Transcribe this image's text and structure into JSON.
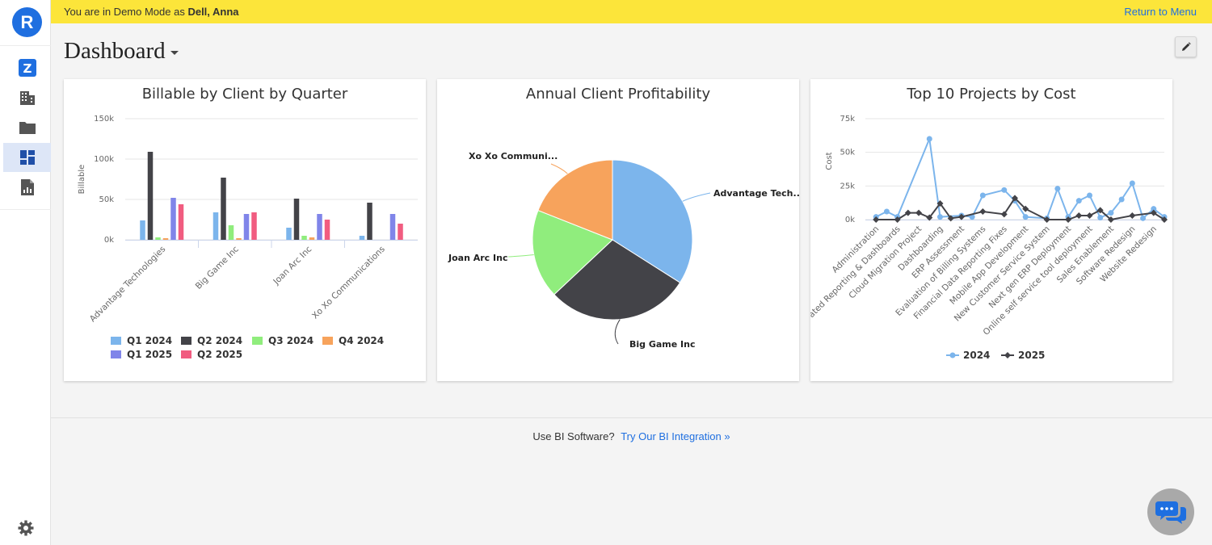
{
  "app": {
    "logo_letter": "R"
  },
  "banner": {
    "prefix": "You are in Demo Mode as ",
    "user": "Dell, Anna",
    "return_label": "Return to Menu"
  },
  "sidebar": {
    "items": [
      {
        "icon": "z-app-icon",
        "active": false
      },
      {
        "icon": "building-icon",
        "active": false
      },
      {
        "icon": "folder-icon",
        "active": false
      },
      {
        "icon": "dashboard-icon",
        "active": true
      },
      {
        "icon": "report-icon",
        "active": false
      }
    ],
    "settings_icon": "gear-icon"
  },
  "page": {
    "title": "Dashboard",
    "edit_icon": "pencil-icon"
  },
  "cards": {
    "billable": {
      "title": "Billable by Client by Quarter"
    },
    "profitability": {
      "title": "Annual Client Profitability"
    },
    "projects": {
      "title": "Top 10 Projects by Cost"
    }
  },
  "chart_data": [
    {
      "type": "bar",
      "title": "Billable by Client by Quarter",
      "ylabel": "Billable",
      "ylim": [
        0,
        150000
      ],
      "y_ticks": [
        "0k",
        "50k",
        "100k",
        "150k"
      ],
      "categories": [
        "Advantage Technologies",
        "Big Game Inc",
        "Joan Arc Inc",
        "Xo Xo Communications"
      ],
      "series": [
        {
          "name": "Q1 2024",
          "color": "#7cb5ec",
          "values": [
            24000,
            34000,
            15000,
            5000
          ]
        },
        {
          "name": "Q2 2024",
          "color": "#434348",
          "values": [
            109000,
            77000,
            51000,
            46000
          ]
        },
        {
          "name": "Q3 2024",
          "color": "#90ed7d",
          "values": [
            3000,
            18000,
            5000,
            0
          ]
        },
        {
          "name": "Q4 2024",
          "color": "#f7a35c",
          "values": [
            2000,
            2000,
            3000,
            0
          ]
        },
        {
          "name": "Q1 2025",
          "color": "#8085e9",
          "values": [
            52000,
            32000,
            32000,
            32000
          ]
        },
        {
          "name": "Q2 2025",
          "color": "#f15c80",
          "values": [
            44000,
            34000,
            25000,
            20000
          ]
        }
      ],
      "legend": "bottom"
    },
    {
      "type": "pie",
      "title": "Annual Client Profitability",
      "labels": [
        "Advantage Tech...",
        "Big Game Inc",
        "Joan Arc Inc",
        "Xo Xo Communi..."
      ],
      "values": [
        34,
        29,
        18,
        19
      ],
      "colors": [
        "#7cb5ec",
        "#434348",
        "#90ed7d",
        "#f7a35c"
      ]
    },
    {
      "type": "line",
      "title": "Top 10 Projects by Cost",
      "ylabel": "Cost",
      "ylim": [
        0,
        75000
      ],
      "y_ticks": [
        "0k",
        "25k",
        "50k",
        "75k"
      ],
      "categories": [
        "Administration",
        "Automated Reporting & Dashboards",
        "Cloud Migration Project",
        "Dashboarding",
        "ERP Assessment",
        "Evaluation of Billing Systems",
        "Financial Data Reporting Fixes",
        "Mobile App Development",
        "New Customer Service System",
        "Next gen ERP Deployment",
        "Online self service tool deployment",
        "Sales Enablement",
        "Software Redesign",
        "Website Redesign"
      ],
      "tick_labels": [
        "Administration",
        "ated Reporting & Dashboards",
        "Cloud Migration Project",
        "Dashboarding",
        "ERP Assessment",
        "Evaluation of Billing Systems",
        "Financial Data Reporting Fixes",
        "Mobile App Development",
        "New Customer Service System",
        "Next gen ERP Deployment",
        "Online self service tool deployment",
        "Sales Enablement",
        "Software Redesign",
        "Website Redesign"
      ],
      "series": [
        {
          "name": "2024",
          "color": "#7cb5ec",
          "marker": "circle",
          "points": [
            [
              0,
              2000
            ],
            [
              0.5,
              6000
            ],
            [
              1,
              2000
            ],
            [
              2.5,
              60000
            ],
            [
              3,
              2000
            ],
            [
              4,
              3000
            ],
            [
              4.5,
              2000
            ],
            [
              5,
              18000
            ],
            [
              6,
              22000
            ],
            [
              6.5,
              14000
            ],
            [
              7,
              2000
            ],
            [
              8,
              1000
            ],
            [
              8.5,
              23000
            ],
            [
              9,
              2000
            ],
            [
              9.5,
              14000
            ],
            [
              10,
              18000
            ],
            [
              10.5,
              1500
            ],
            [
              11,
              5000
            ],
            [
              11.5,
              15000
            ],
            [
              12,
              27000
            ],
            [
              12.5,
              1000
            ],
            [
              13,
              8000
            ],
            [
              13.5,
              2000
            ]
          ]
        },
        {
          "name": "2025",
          "color": "#434348",
          "marker": "diamond",
          "points": [
            [
              0,
              0
            ],
            [
              1,
              0
            ],
            [
              1.5,
              5000
            ],
            [
              2,
              5000
            ],
            [
              2.5,
              1500
            ],
            [
              3,
              12000
            ],
            [
              3.5,
              1000
            ],
            [
              4,
              2000
            ],
            [
              5,
              6000
            ],
            [
              6,
              4000
            ],
            [
              6.5,
              16000
            ],
            [
              7,
              8000
            ],
            [
              8,
              0
            ],
            [
              9,
              0
            ],
            [
              9.5,
              3000
            ],
            [
              10,
              3000
            ],
            [
              10.5,
              7000
            ],
            [
              11,
              0
            ],
            [
              12,
              3000
            ],
            [
              13,
              5000
            ],
            [
              13.5,
              0
            ]
          ]
        }
      ],
      "legend": "bottom"
    }
  ],
  "footer": {
    "prompt": "Use BI Software?",
    "link": "Try Our BI Integration »"
  },
  "chat": {
    "icon": "chat-bubbles-icon"
  }
}
